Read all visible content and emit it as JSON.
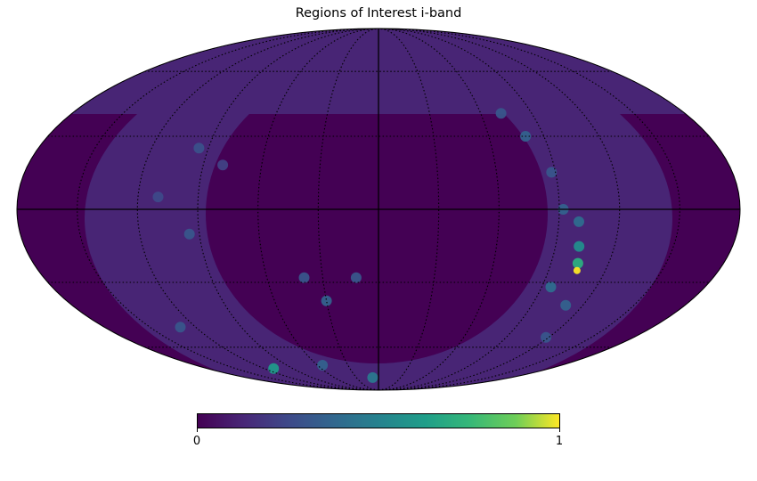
{
  "chart_data": {
    "type": "heatmap",
    "title": "Regions of Interest i-band",
    "projection": "mollweide",
    "graticule": "dotted",
    "colormap": "viridis",
    "colorbar": {
      "orientation": "horizontal",
      "range": [
        0,
        1
      ],
      "tick_labels": [
        "0",
        "1"
      ]
    },
    "background_level": 0.0,
    "survey_band_level": 0.12,
    "north_cap_level": 0.12,
    "regions": [
      {
        "lon": -95,
        "lat": 25,
        "level": 0.28
      },
      {
        "lon": -80,
        "lat": 18,
        "level": 0.22
      },
      {
        "lon": -110,
        "lat": 5,
        "level": 0.25
      },
      {
        "lon": -95,
        "lat": -10,
        "level": 0.3
      },
      {
        "lon": -40,
        "lat": -28,
        "level": 0.3
      },
      {
        "lon": -12,
        "lat": -28,
        "level": 0.3
      },
      {
        "lon": -30,
        "lat": -38,
        "level": 0.35
      },
      {
        "lon": -110,
        "lat": -72,
        "level": 0.6
      },
      {
        "lon": -130,
        "lat": -50,
        "level": 0.3
      },
      {
        "lon": -55,
        "lat": -70,
        "level": 0.35
      },
      {
        "lon": -8,
        "lat": -78,
        "level": 0.45
      },
      {
        "lon": 72,
        "lat": 40,
        "level": 0.3
      },
      {
        "lon": 80,
        "lat": 30,
        "level": 0.35
      },
      {
        "lon": 88,
        "lat": 15,
        "level": 0.3
      },
      {
        "lon": 92,
        "lat": 0,
        "level": 0.35
      },
      {
        "lon": 100,
        "lat": -5,
        "level": 0.4
      },
      {
        "lon": 102,
        "lat": -15,
        "level": 0.55
      },
      {
        "lon": 104,
        "lat": -22,
        "level": 0.7
      },
      {
        "lon": 105,
        "lat": -25,
        "level": 1.0
      },
      {
        "lon": 95,
        "lat": -32,
        "level": 0.4
      },
      {
        "lon": 110,
        "lat": -40,
        "level": 0.35
      },
      {
        "lon": 118,
        "lat": -55,
        "level": 0.3
      }
    ]
  }
}
